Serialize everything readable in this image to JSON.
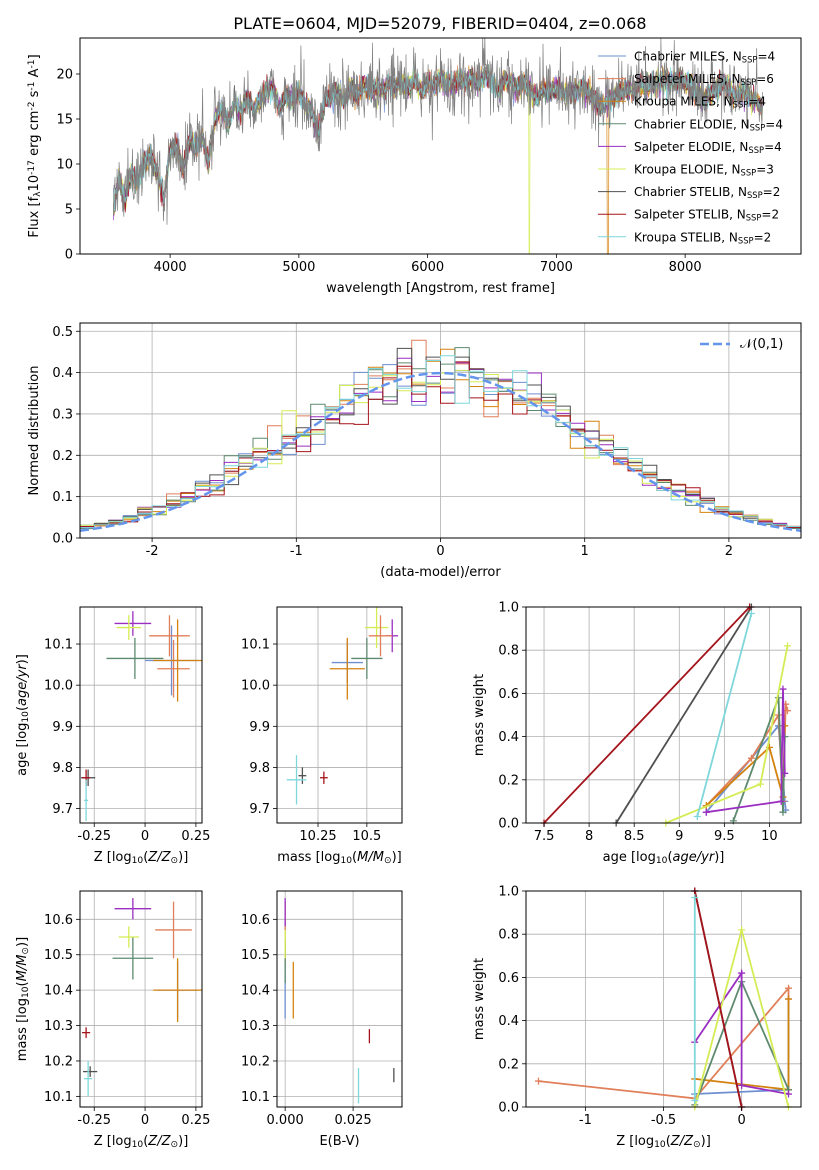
{
  "figure": {
    "title": "PLATE=0604, MJD=52079, FIBERID=0404, z=0.068"
  },
  "models": [
    {
      "name": "Chabrier MILES, N$_{SSP}$=4",
      "label": "Chabrier MILES, N",
      "nssp": "4",
      "color": "#6f8fd1"
    },
    {
      "name": "Salpeter MILES, N$_{SSP}$=6",
      "label": "Salpeter MILES, N",
      "nssp": "6",
      "color": "#e07f59"
    },
    {
      "name": "Kroupa MILES, N$_{SSP}$=4",
      "label": "Kroupa MILES, N",
      "nssp": "4",
      "color": "#d4820e"
    },
    {
      "name": "Chabrier ELODIE, N$_{SSP}$=4",
      "label": "Chabrier ELODIE, N",
      "nssp": "4",
      "color": "#5d8a6f"
    },
    {
      "name": "Salpeter ELODIE, N$_{SSP}$=4",
      "label": "Salpeter ELODIE, N",
      "nssp": "4",
      "color": "#9a2ec1"
    },
    {
      "name": "Kroupa ELODIE, N$_{SSP}$=3",
      "label": "Kroupa ELODIE, N",
      "nssp": "3",
      "color": "#d6ec55"
    },
    {
      "name": "Chabrier STELIB, N$_{SSP}$=2",
      "label": "Chabrier STELIB, N",
      "nssp": "2",
      "color": "#505050"
    },
    {
      "name": "Salpeter STELIB, N$_{SSP}$=2",
      "label": "Salpeter STELIB, N",
      "nssp": "2",
      "color": "#a5141c"
    },
    {
      "name": "Kroupa STELIB, N$_{SSP}$=2",
      "label": "Kroupa STELIB, N",
      "nssp": "2",
      "color": "#7fd7dc"
    }
  ],
  "chart_data": [
    {
      "id": "spectrum",
      "type": "line",
      "xlabel": "wavelength [Angstrom, rest frame]",
      "ylabel": "Flux [f$_\\lambda$10$^{-17}$ erg cm$^{-2}$ s$^{-1}$ A$^{-1}$]",
      "xlim": [
        3300,
        8900
      ],
      "ylim": [
        0,
        24
      ],
      "xticks": [
        4000,
        5000,
        6000,
        7000,
        8000
      ],
      "yticks": [
        0,
        5,
        10,
        15,
        20
      ],
      "data_color": "#808080",
      "data_x": [
        3560,
        3600,
        3650,
        3700,
        3750,
        3800,
        3850,
        3900,
        3950,
        4000,
        4050,
        4100,
        4150,
        4200,
        4250,
        4300,
        4350,
        4400,
        4450,
        4500,
        4550,
        4600,
        4650,
        4700,
        4750,
        4800,
        4850,
        4900,
        4950,
        5000,
        5050,
        5100,
        5150,
        5200,
        5250,
        5300,
        5350,
        5400,
        5450,
        5500,
        5550,
        5600,
        5650,
        5700,
        5750,
        5800,
        5850,
        5900,
        5950,
        6000,
        6050,
        6100,
        6150,
        6200,
        6250,
        6300,
        6350,
        6400,
        6450,
        6500,
        6550,
        6600,
        6650,
        6700,
        6750,
        6800,
        6850,
        6900,
        6950,
        7000,
        7050,
        7100,
        7150,
        7200,
        7250,
        7300,
        7350,
        7400,
        7450,
        7500,
        7550,
        7600,
        7650,
        7700,
        7750,
        7800,
        7850,
        7900,
        7950,
        8000,
        8050,
        8100,
        8150,
        8200,
        8250,
        8300,
        8350,
        8400,
        8450,
        8500,
        8550,
        8600
      ],
      "data_y": [
        5.0,
        8.5,
        6.0,
        9.0,
        8.0,
        10.0,
        11.0,
        9.0,
        6.0,
        11.5,
        12.0,
        9.5,
        12.5,
        12.0,
        13.0,
        10.0,
        15.0,
        16.0,
        14.5,
        17.0,
        15.5,
        17.5,
        16.0,
        17.0,
        18.0,
        18.5,
        16.0,
        17.5,
        17.0,
        18.0,
        16.5,
        16.0,
        13.5,
        17.0,
        17.5,
        18.0,
        17.0,
        18.5,
        17.5,
        19.0,
        18.0,
        18.5,
        18.0,
        19.0,
        18.5,
        19.0,
        18.5,
        19.5,
        18.0,
        19.0,
        18.5,
        19.5,
        19.0,
        18.5,
        19.5,
        19.0,
        19.5,
        19.0,
        20.0,
        19.0,
        18.0,
        19.5,
        19.0,
        18.5,
        19.0,
        18.0,
        17.5,
        18.5,
        18.0,
        18.5,
        18.0,
        18.0,
        18.0,
        18.5,
        18.0,
        17.0,
        16.5,
        17.0,
        17.5,
        18.0,
        18.5,
        18.0,
        19.0,
        18.5,
        19.0,
        19.0,
        19.5,
        19.0,
        19.5,
        19.0,
        18.5,
        18.0,
        17.0,
        18.0,
        18.5,
        19.0,
        18.0,
        17.5,
        18.0,
        17.5,
        17.0,
        16.0
      ]
    },
    {
      "id": "residuals",
      "type": "step",
      "xlabel": "(data-model)/error",
      "ylabel": "Normed distribution",
      "xlim": [
        -2.5,
        2.5
      ],
      "ylim": [
        0,
        0.52
      ],
      "xticks": [
        -2,
        -1,
        0,
        1,
        2
      ],
      "yticks": [
        0.0,
        0.1,
        0.2,
        0.3,
        0.4,
        0.5
      ],
      "legend": "$\\mathcal{N}(0,1)$",
      "legend_position": "top-right",
      "normal_color": "#6495ed",
      "bin_width": 0.1
    },
    {
      "id": "age_vs_Z",
      "type": "scatter",
      "xlabel": "Z [log$_{10}$($Z/Z_\\odot$)]",
      "ylabel": "age  [log$_{10}$($age/yr$)]",
      "xlim": [
        -0.32,
        0.28
      ],
      "ylim": [
        9.665,
        10.19
      ],
      "xticks": [
        -0.25,
        0.0,
        0.25
      ],
      "yticks": [
        9.7,
        9.8,
        9.9,
        10.0,
        10.1
      ],
      "points": [
        {
          "x": 0.13,
          "y": 10.06,
          "xerr": 0.13,
          "yerr": 0.085,
          "model": 0
        },
        {
          "x": 0.14,
          "y": 10.04,
          "xerr": 0.08,
          "yerr": 0.07,
          "model": 1
        },
        {
          "x": 0.16,
          "y": 10.06,
          "xerr": 0.12,
          "yerr": 0.1,
          "model": 2
        },
        {
          "x": -0.05,
          "y": 10.065,
          "xerr": 0.14,
          "yerr": 0.05,
          "model": 3
        },
        {
          "x": -0.06,
          "y": 10.15,
          "xerr": 0.09,
          "yerr": 0.03,
          "model": 4
        },
        {
          "x": -0.08,
          "y": 10.14,
          "xerr": 0.06,
          "yerr": 0.03,
          "model": 5
        },
        {
          "x": -0.28,
          "y": 9.775,
          "xerr": 0.035,
          "yerr": 0.02,
          "model": 6
        },
        {
          "x": -0.29,
          "y": 9.775,
          "xerr": 0.02,
          "yerr": 0.02,
          "model": 7
        },
        {
          "x": -0.29,
          "y": 9.72,
          "xerr": 0.01,
          "yerr": 0.05,
          "model": 8
        },
        {
          "x": 0.12,
          "y": 10.12,
          "xerr": 0.1,
          "yerr": 0.05,
          "model": 1
        }
      ]
    },
    {
      "id": "age_vs_mass",
      "type": "scatter",
      "xlabel": "mass [log$_{10}$($M/M_\\odot$)]",
      "ylabel": "",
      "xlim": [
        10.04,
        10.68
      ],
      "ylim": [
        9.665,
        10.19
      ],
      "xticks": [
        10.25,
        10.5
      ],
      "yticks": [
        9.7,
        9.8,
        9.9,
        10.0,
        10.1
      ],
      "points": [
        {
          "x": 10.4,
          "y": 10.055,
          "xerr": 0.08,
          "yerr": 0.05,
          "model": 0
        },
        {
          "x": 10.4,
          "y": 10.04,
          "xerr": 0.09,
          "yerr": 0.075,
          "model": 2
        },
        {
          "x": 10.5,
          "y": 10.065,
          "xerr": 0.08,
          "yerr": 0.05,
          "model": 3
        },
        {
          "x": 10.63,
          "y": 10.12,
          "xerr": 0.03,
          "yerr": 0.04,
          "model": 4
        },
        {
          "x": 10.55,
          "y": 10.14,
          "xerr": 0.06,
          "yerr": 0.05,
          "model": 5
        },
        {
          "x": 10.57,
          "y": 10.12,
          "xerr": 0.06,
          "yerr": 0.05,
          "model": 1
        },
        {
          "x": 10.17,
          "y": 9.78,
          "xerr": 0.02,
          "yerr": 0.02,
          "model": 6
        },
        {
          "x": 10.28,
          "y": 9.775,
          "xerr": 0.02,
          "yerr": 0.015,
          "model": 7
        },
        {
          "x": 10.14,
          "y": 9.77,
          "xerr": 0.05,
          "yerr": 0.06,
          "model": 8
        }
      ]
    },
    {
      "id": "mass_vs_Z",
      "type": "scatter",
      "xlabel": "Z [log$_{10}$($Z/Z_\\odot$)]",
      "ylabel": "mass [log$_{10}$($M/M_\\odot$)]",
      "xlim": [
        -0.32,
        0.28
      ],
      "ylim": [
        10.07,
        10.68
      ],
      "xticks": [
        -0.25,
        0.0,
        0.25
      ],
      "yticks": [
        10.1,
        10.2,
        10.3,
        10.4,
        10.5,
        10.6
      ],
      "points": [
        {
          "x": 0.16,
          "y": 10.4,
          "xerr": 0.1,
          "yerr": 0.08,
          "model": 0
        },
        {
          "x": 0.14,
          "y": 10.57,
          "xerr": 0.09,
          "yerr": 0.08,
          "model": 1
        },
        {
          "x": 0.16,
          "y": 10.4,
          "xerr": 0.12,
          "yerr": 0.09,
          "model": 2
        },
        {
          "x": -0.06,
          "y": 10.49,
          "xerr": 0.1,
          "yerr": 0.06,
          "model": 3
        },
        {
          "x": -0.06,
          "y": 10.63,
          "xerr": 0.09,
          "yerr": 0.03,
          "model": 4
        },
        {
          "x": -0.08,
          "y": 10.55,
          "xerr": 0.05,
          "yerr": 0.03,
          "model": 5
        },
        {
          "x": -0.27,
          "y": 10.17,
          "xerr": 0.035,
          "yerr": 0.015,
          "model": 6
        },
        {
          "x": -0.29,
          "y": 10.28,
          "xerr": 0.02,
          "yerr": 0.015,
          "model": 7
        },
        {
          "x": -0.28,
          "y": 10.15,
          "xerr": 0.02,
          "yerr": 0.05,
          "model": 8
        }
      ]
    },
    {
      "id": "mass_vs_ebv",
      "type": "scatter",
      "xlabel": "E(B-V)",
      "ylabel": "",
      "xlim": [
        -0.003,
        0.043
      ],
      "ylim": [
        10.07,
        10.68
      ],
      "xticks": [
        0.0,
        0.025
      ],
      "xticklabels": [
        "0.000",
        "0.025"
      ],
      "yticks": [
        10.1,
        10.2,
        10.3,
        10.4,
        10.5,
        10.6
      ],
      "points": [
        {
          "x": 0.0,
          "y": 10.4,
          "xerr": 0,
          "yerr": 0.08,
          "model": 0
        },
        {
          "x": 0.0,
          "y": 10.56,
          "xerr": 0,
          "yerr": 0.09,
          "model": 1
        },
        {
          "x": 0.003,
          "y": 10.4,
          "xerr": 0,
          "yerr": 0.08,
          "model": 2
        },
        {
          "x": 0.0,
          "y": 10.48,
          "xerr": 0,
          "yerr": 0.06,
          "model": 3
        },
        {
          "x": 0.0,
          "y": 10.62,
          "xerr": 0,
          "yerr": 0.04,
          "model": 4
        },
        {
          "x": 0.0,
          "y": 10.53,
          "xerr": 0,
          "yerr": 0.04,
          "model": 5
        },
        {
          "x": 0.04,
          "y": 10.16,
          "xerr": 0,
          "yerr": 0.02,
          "model": 6
        },
        {
          "x": 0.031,
          "y": 10.27,
          "xerr": 0,
          "yerr": 0.02,
          "model": 7
        },
        {
          "x": 0.027,
          "y": 10.13,
          "xerr": 0,
          "yerr": 0.05,
          "model": 8
        }
      ]
    },
    {
      "id": "weight_vs_age",
      "type": "line",
      "xlabel": "age  [log$_{10}$($age/yr$)]",
      "ylabel": "mass weight",
      "xlim": [
        7.3,
        10.35
      ],
      "ylim": [
        0,
        1
      ],
      "xticks": [
        7.5,
        8.0,
        8.5,
        9.0,
        9.5,
        10.0
      ],
      "yticks": [
        0.0,
        0.2,
        0.4,
        0.6,
        0.8,
        1.0
      ],
      "series": [
        {
          "model": 0,
          "x": [
            9.3,
            10.1,
            10.17,
            10.18
          ],
          "y": [
            0.05,
            0.45,
            0.1,
            0.06
          ]
        },
        {
          "model": 1,
          "x": [
            9.3,
            9.8,
            10.1,
            10.15,
            10.18,
            10.2
          ],
          "y": [
            0.08,
            0.3,
            0.5,
            0.1,
            0.55,
            0.52
          ]
        },
        {
          "model": 2,
          "x": [
            9.3,
            10.0,
            10.15,
            10.17
          ],
          "y": [
            0.08,
            0.35,
            0.12,
            0.45
          ]
        },
        {
          "model": 3,
          "x": [
            9.6,
            10.1,
            10.15,
            10.17
          ],
          "y": [
            0.01,
            0.58,
            0.05,
            0.4
          ]
        },
        {
          "model": 4,
          "x": [
            9.3,
            10.13,
            10.15,
            10.17
          ],
          "y": [
            0.05,
            0.1,
            0.62,
            0.23
          ]
        },
        {
          "model": 5,
          "x": [
            8.85,
            9.9,
            10.2
          ],
          "y": [
            0.0,
            0.18,
            0.82
          ]
        },
        {
          "model": 6,
          "x": [
            8.3,
            9.8
          ],
          "y": [
            0.0,
            1.0
          ]
        },
        {
          "model": 7,
          "x": [
            7.5,
            9.78
          ],
          "y": [
            0.0,
            1.0
          ]
        },
        {
          "model": 8,
          "x": [
            9.2,
            9.8
          ],
          "y": [
            0.03,
            0.97
          ]
        }
      ]
    },
    {
      "id": "weight_vs_Z",
      "type": "line",
      "xlabel": "Z [log$_{10}$($Z/Z_\\odot$)]",
      "ylabel": "mass weight",
      "xlim": [
        -1.38,
        0.38
      ],
      "ylim": [
        0,
        1
      ],
      "xticks": [
        -1.0,
        -0.5,
        0.0
      ],
      "yticks": [
        0.0,
        0.2,
        0.4,
        0.6,
        0.8,
        1.0
      ],
      "series": [
        {
          "model": 0,
          "x": [
            -0.3,
            0.3,
            0.3
          ],
          "y": [
            0.06,
            0.08,
            0.5
          ]
        },
        {
          "model": 1,
          "x": [
            -1.3,
            -0.3,
            0.3,
            0.3
          ],
          "y": [
            0.12,
            0.04,
            0.55,
            0.5
          ]
        },
        {
          "model": 2,
          "x": [
            -0.3,
            0.3,
            0.3
          ],
          "y": [
            0.13,
            0.08,
            0.5
          ]
        },
        {
          "model": 3,
          "x": [
            -0.3,
            0.0,
            0.3
          ],
          "y": [
            0.01,
            0.58,
            0.08
          ]
        },
        {
          "model": 4,
          "x": [
            -0.3,
            0.0,
            0.0,
            0.3
          ],
          "y": [
            0.3,
            0.62,
            0.1,
            0.06
          ]
        },
        {
          "model": 5,
          "x": [
            -0.3,
            0.0,
            0.3
          ],
          "y": [
            0.0,
            0.82,
            0.0
          ]
        },
        {
          "model": 6,
          "x": [
            -0.3,
            0.0
          ],
          "y": [
            1.0,
            0.0
          ]
        },
        {
          "model": 7,
          "x": [
            -0.3,
            0.0
          ],
          "y": [
            1.0,
            0.0
          ]
        },
        {
          "model": 8,
          "x": [
            -0.3,
            -0.3
          ],
          "y": [
            0.97,
            0.03
          ]
        }
      ]
    }
  ]
}
